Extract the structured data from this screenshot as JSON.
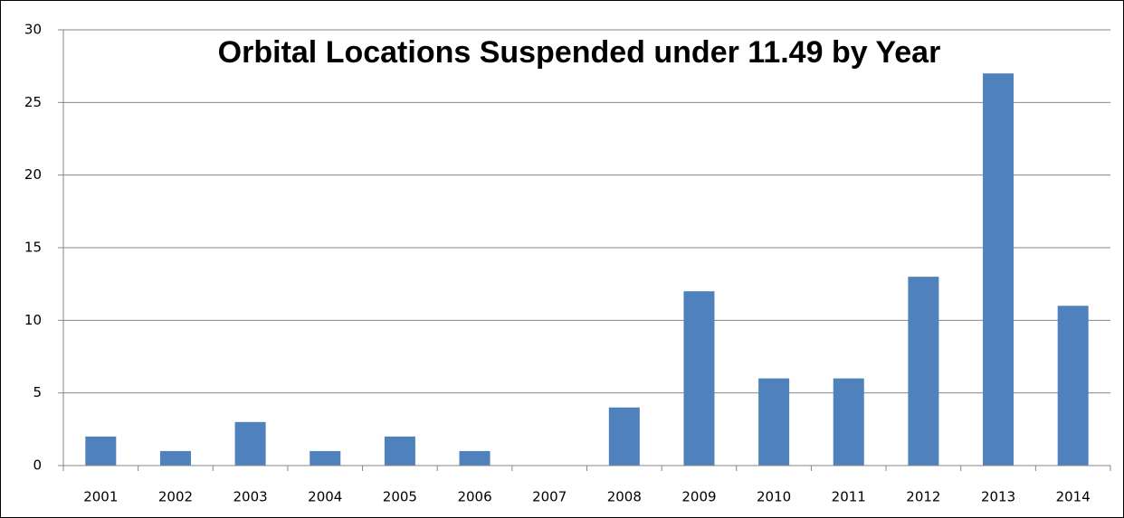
{
  "chart_data": {
    "type": "bar",
    "title": "Orbital Locations Suspended under 11.49 by Year",
    "categories": [
      "2001",
      "2002",
      "2003",
      "2004",
      "2005",
      "2006",
      "2007",
      "2008",
      "2009",
      "2010",
      "2011",
      "2012",
      "2013",
      "2014"
    ],
    "values": [
      2,
      1,
      3,
      1,
      2,
      1,
      0,
      4,
      12,
      6,
      6,
      13,
      27,
      11
    ],
    "color": "#4f81bd",
    "ylim": [
      0,
      30
    ],
    "yticks": [
      0,
      5,
      10,
      15,
      20,
      25,
      30
    ],
    "grid": true
  }
}
